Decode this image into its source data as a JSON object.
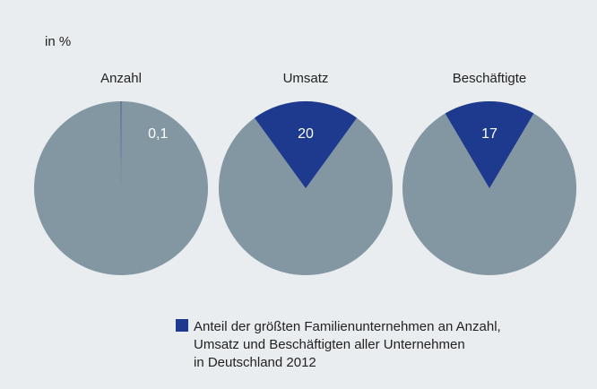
{
  "unit_label": "in %",
  "legend": {
    "lines": [
      "Anteil der größten Familienunternehmen an Anzahl,",
      "Umsatz und Beschäftigten aller Unternehmen",
      "in Deutschland 2012"
    ],
    "color": "#1e3a8f"
  },
  "rest_color": "#8397a3",
  "chart_data": [
    {
      "type": "pie",
      "title": "Anzahl",
      "values": [
        0.1
      ],
      "value_labels": [
        "0,1"
      ],
      "color": "#1e3a8f"
    },
    {
      "type": "pie",
      "title": "Umsatz",
      "values": [
        20
      ],
      "color": "#1e3a8f"
    },
    {
      "type": "pie",
      "title": "Beschäftigte",
      "values": [
        17
      ],
      "color": "#1e3a8f"
    }
  ]
}
